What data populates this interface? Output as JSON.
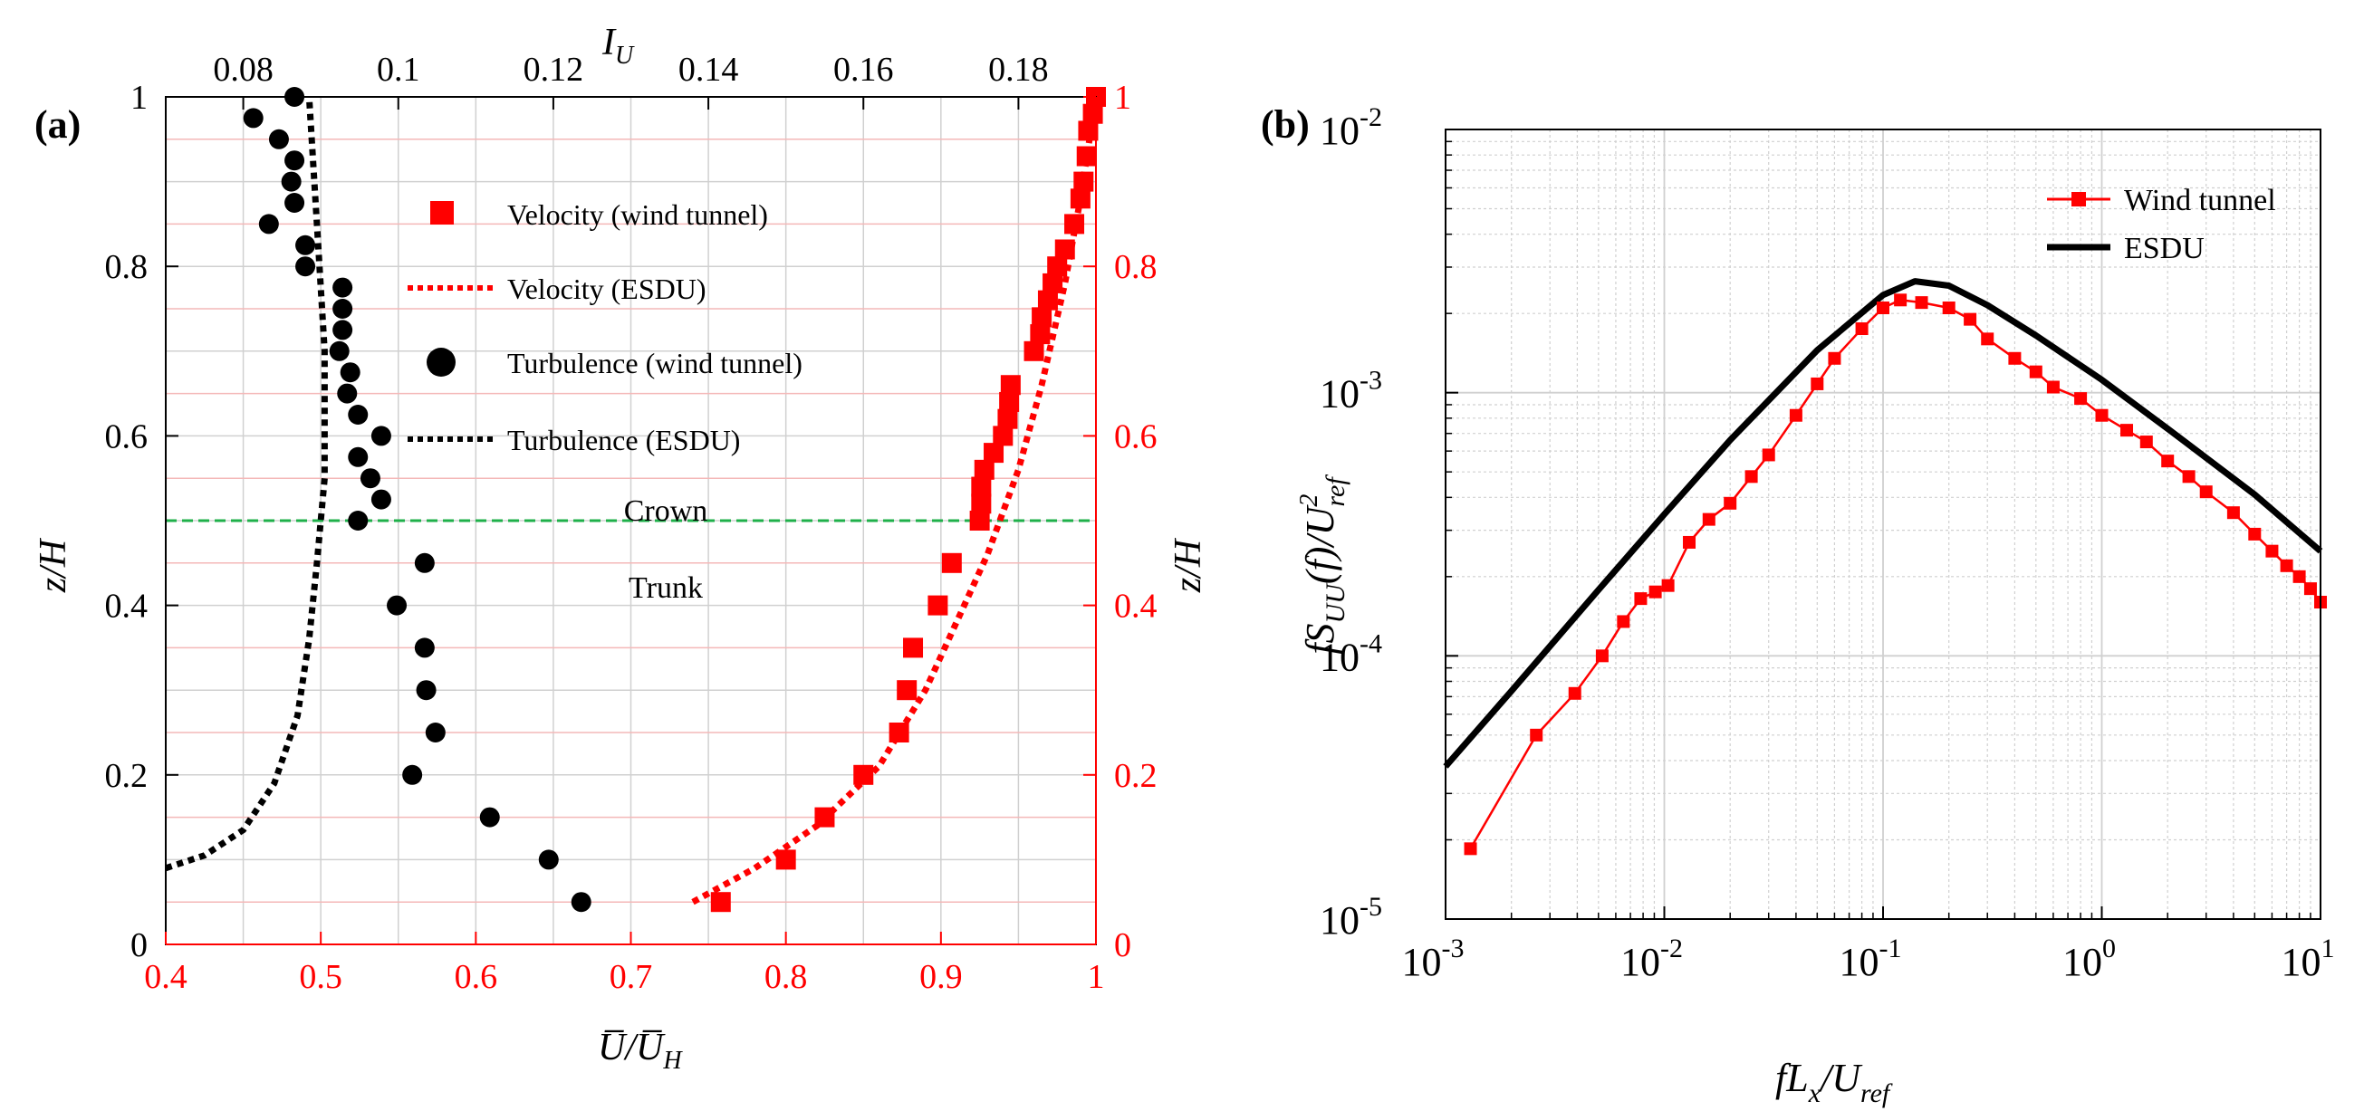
{
  "colors": {
    "black": "#000000",
    "red": "#ff0000",
    "dashed_green": "#1fb04a",
    "grid": "#d0d0d0",
    "grid_red": "#f4b8b8"
  },
  "panel_a": {
    "label": "(a)",
    "top_axis_label": "I",
    "top_axis_sub": "U",
    "bottom_axis_label": "U̅/U̅",
    "bottom_axis_sub": "H",
    "left_axis_label": "z/H",
    "right_axis_label": "z/H",
    "region_labels": {
      "crown": "Crown",
      "trunk": "Trunk"
    },
    "legend": [
      {
        "label": "Velocity (wind tunnel)",
        "marker": "square",
        "color": "#ff0000"
      },
      {
        "label": "Velocity (ESDU)",
        "marker": "dotted",
        "color": "#ff0000"
      },
      {
        "label": "Turbulence (wind tunnel)",
        "marker": "circle",
        "color": "#000000"
      },
      {
        "label": "Turbulence (ESDU)",
        "marker": "dotted",
        "color": "#000000"
      }
    ]
  },
  "panel_b": {
    "label": "(b)",
    "xlabel": "fL_x/U_ref",
    "ylabel": "fS_UU(f)/U²_ref",
    "legend": [
      {
        "label": "Wind tunnel",
        "marker": "line-square",
        "color": "#ff0000"
      },
      {
        "label": "ESDU",
        "marker": "line",
        "color": "#000000"
      }
    ]
  },
  "chart_data": [
    {
      "type": "scatter",
      "title": "(a)",
      "xlabel_bottom": "U̅/U̅H",
      "xlabel_top": "IU",
      "ylabel": "z/H",
      "xlim_bottom": [
        0.4,
        1.0
      ],
      "xlim_top": [
        0.07,
        0.19
      ],
      "ylim": [
        0,
        1
      ],
      "x_ticks_bottom": [
        0.4,
        0.5,
        0.6,
        0.7,
        0.8,
        0.9,
        1
      ],
      "x_tick_labels_bottom": [
        "0.4",
        "0.5",
        "0.6",
        "0.7",
        "0.8",
        "0.9",
        "1"
      ],
      "x_ticks_top": [
        0.08,
        0.1,
        0.12,
        0.14,
        0.16,
        0.18
      ],
      "x_tick_labels_top": [
        "0.08",
        "0.1",
        "0.12",
        "0.14",
        "0.16",
        "0.18"
      ],
      "y_ticks": [
        0,
        0.2,
        0.4,
        0.6,
        0.8,
        1
      ],
      "y_tick_labels": [
        "0",
        "0.2",
        "0.4",
        "0.6",
        "0.8",
        "1"
      ],
      "reference_line": {
        "y": 0.5,
        "style": "dashed",
        "color": "green"
      },
      "series": [
        {
          "name": "Velocity (wind tunnel)",
          "axis": "bottom",
          "marker": "square",
          "color": "#ff0000",
          "points": [
            [
              0.758,
              0.05
            ],
            [
              0.8,
              0.1
            ],
            [
              0.825,
              0.15
            ],
            [
              0.85,
              0.2
            ],
            [
              0.873,
              0.25
            ],
            [
              0.878,
              0.3
            ],
            [
              0.882,
              0.35
            ],
            [
              0.898,
              0.4
            ],
            [
              0.907,
              0.45
            ],
            [
              0.925,
              0.5
            ],
            [
              0.926,
              0.52
            ],
            [
              0.926,
              0.54
            ],
            [
              0.928,
              0.56
            ],
            [
              0.934,
              0.58
            ],
            [
              0.94,
              0.6
            ],
            [
              0.943,
              0.62
            ],
            [
              0.944,
              0.64
            ],
            [
              0.945,
              0.66
            ],
            [
              0.96,
              0.7
            ],
            [
              0.964,
              0.72
            ],
            [
              0.965,
              0.74
            ],
            [
              0.969,
              0.76
            ],
            [
              0.972,
              0.78
            ],
            [
              0.975,
              0.8
            ],
            [
              0.98,
              0.82
            ],
            [
              0.986,
              0.85
            ],
            [
              0.99,
              0.88
            ],
            [
              0.992,
              0.9
            ],
            [
              0.994,
              0.93
            ],
            [
              0.995,
              0.96
            ],
            [
              0.998,
              0.98
            ],
            [
              1.0,
              1.0
            ]
          ]
        },
        {
          "name": "Velocity (ESDU)",
          "axis": "bottom",
          "style": "dotted",
          "color": "#ff0000",
          "points": [
            [
              0.74,
              0.05
            ],
            [
              0.78,
              0.09
            ],
            [
              0.82,
              0.14
            ],
            [
              0.86,
              0.21
            ],
            [
              0.89,
              0.3
            ],
            [
              0.91,
              0.38
            ],
            [
              0.93,
              0.46
            ],
            [
              0.95,
              0.56
            ],
            [
              0.965,
              0.66
            ],
            [
              0.98,
              0.78
            ],
            [
              0.99,
              0.88
            ],
            [
              1.0,
              1.0
            ]
          ]
        },
        {
          "name": "Turbulence (wind tunnel)",
          "axis": "top",
          "marker": "circle",
          "color": "#000000",
          "points": [
            [
              0.0813,
              0.975
            ],
            [
              0.0866,
              1.0
            ],
            [
              0.0846,
              0.95
            ],
            [
              0.0866,
              0.925
            ],
            [
              0.0862,
              0.9
            ],
            [
              0.0866,
              0.875
            ],
            [
              0.0833,
              0.85
            ],
            [
              0.088,
              0.825
            ],
            [
              0.088,
              0.8
            ],
            [
              0.0928,
              0.775
            ],
            [
              0.0928,
              0.75
            ],
            [
              0.0928,
              0.725
            ],
            [
              0.0924,
              0.7
            ],
            [
              0.0938,
              0.675
            ],
            [
              0.0934,
              0.65
            ],
            [
              0.0948,
              0.625
            ],
            [
              0.0978,
              0.6
            ],
            [
              0.0948,
              0.575
            ],
            [
              0.0964,
              0.55
            ],
            [
              0.0978,
              0.525
            ],
            [
              0.0948,
              0.5
            ],
            [
              0.1034,
              0.45
            ],
            [
              0.0998,
              0.4
            ],
            [
              0.1034,
              0.35
            ],
            [
              0.1036,
              0.3
            ],
            [
              0.1048,
              0.25
            ],
            [
              0.1018,
              0.2
            ],
            [
              0.1118,
              0.15
            ],
            [
              0.1194,
              0.1
            ],
            [
              0.1236,
              0.05
            ]
          ]
        },
        {
          "name": "Turbulence (ESDU)",
          "axis": "top",
          "style": "dotted",
          "color": "#000000",
          "points": [
            [
              0.07,
              0.09
            ],
            [
              0.075,
              0.105
            ],
            [
              0.08,
              0.135
            ],
            [
              0.084,
              0.19
            ],
            [
              0.087,
              0.27
            ],
            [
              0.0885,
              0.36
            ],
            [
              0.0895,
              0.45
            ],
            [
              0.0905,
              0.55
            ],
            [
              0.0905,
              0.7
            ],
            [
              0.0895,
              0.85
            ],
            [
              0.0885,
              1.0
            ]
          ]
        }
      ]
    },
    {
      "type": "line",
      "title": "(b)",
      "xscale": "log",
      "yscale": "log",
      "xlabel": "fLx/Uref",
      "ylabel": "fSUU(f)/U2ref",
      "xlim": [
        0.001,
        10
      ],
      "ylim": [
        1e-05,
        0.01
      ],
      "x_tick_labels": [
        "10^-3",
        "10^-2",
        "10^-1",
        "10^0",
        "10^1"
      ],
      "y_tick_labels": [
        "10^-5",
        "10^-4",
        "10^-3",
        "10^-2"
      ],
      "series": [
        {
          "name": "ESDU",
          "style": "solid",
          "color": "#000000",
          "x": [
            0.001,
            0.002,
            0.005,
            0.01,
            0.02,
            0.05,
            0.1,
            0.14,
            0.2,
            0.3,
            0.5,
            1,
            2,
            5,
            10
          ],
          "y": [
            3.8e-05,
            7.35e-05,
            0.000178,
            0.000345,
            0.00066,
            0.00145,
            0.00235,
            0.00265,
            0.00255,
            0.00215,
            0.00165,
            0.00112,
            0.00073,
            0.00041,
            0.00025
          ]
        },
        {
          "name": "Wind tunnel",
          "style": "line-square",
          "color": "#ff0000",
          "x": [
            0.0013,
            0.0026,
            0.0039,
            0.0052,
            0.0065,
            0.0078,
            0.0091,
            0.0104,
            0.013,
            0.016,
            0.02,
            0.025,
            0.03,
            0.04,
            0.05,
            0.06,
            0.08,
            0.1,
            0.12,
            0.15,
            0.2,
            0.25,
            0.3,
            0.4,
            0.5,
            0.6,
            0.8,
            1,
            1.3,
            1.6,
            2,
            2.5,
            3,
            4,
            5,
            6,
            7,
            8,
            9,
            10
          ],
          "y": [
            1.85e-05,
            5e-05,
            7.2e-05,
            0.0001,
            0.000135,
            0.000165,
            0.000175,
            0.000185,
            0.00027,
            0.00033,
            0.00038,
            0.00048,
            0.00058,
            0.00082,
            0.00108,
            0.00135,
            0.00175,
            0.0021,
            0.00225,
            0.0022,
            0.0021,
            0.0019,
            0.0016,
            0.00135,
            0.0012,
            0.00105,
            0.00095,
            0.00082,
            0.00072,
            0.00065,
            0.00055,
            0.00048,
            0.00042,
            0.00035,
            0.00029,
            0.00025,
            0.00022,
            0.0002,
            0.00018,
            0.00016
          ]
        }
      ]
    }
  ]
}
